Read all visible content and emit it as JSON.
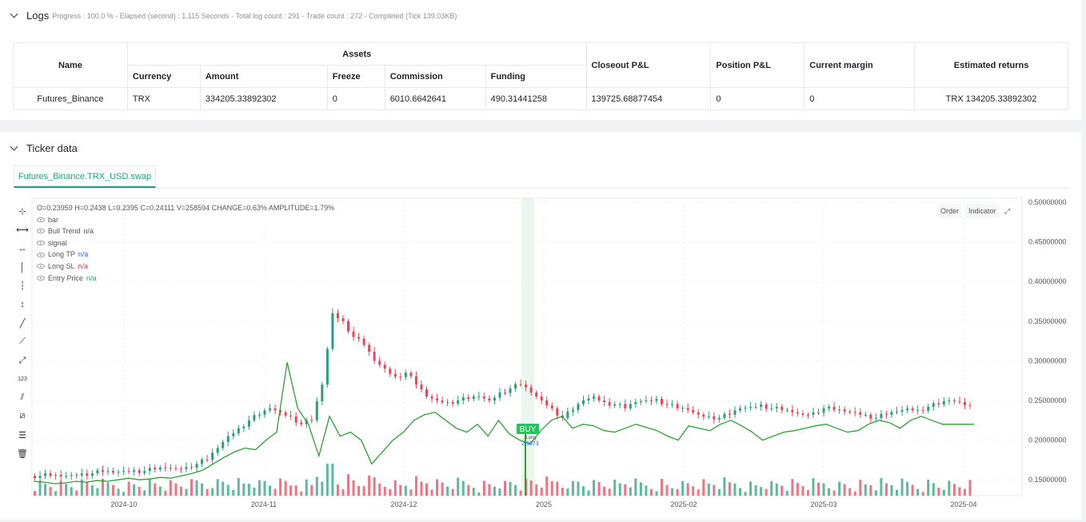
{
  "logs": {
    "title": "Logs",
    "summary": "Progress : 100.0 % - Elapsed (second) : 1.115  Seconds - Total log count : 291 - Trade count : 272 - Completed (Tick 139.03KB)",
    "table": {
      "headers": {
        "name": "Name",
        "assets": "Assets",
        "currency": "Currency",
        "amount": "Amount",
        "freeze": "Freeze",
        "commission": "Commission",
        "funding": "Funding",
        "closeout_pnl": "Closeout P&L",
        "position_pnl": "Position P&L",
        "current_margin": "Current margin",
        "estimated_returns": "Estimated returns"
      },
      "row": {
        "name": "Futures_Binance",
        "currency": "TRX",
        "amount": "334205.33892302",
        "freeze": "0",
        "commission": "6010.6642641",
        "funding": "490.31441258",
        "closeout_pnl": "139725.68877454",
        "position_pnl": "0",
        "current_margin": "0",
        "estimated_returns": "TRX 134205.33892302"
      }
    }
  },
  "ticker": {
    "title": "Ticker data",
    "tab_label": "Futures_Binance.TRX_USD.swap",
    "ohlc_line": "O=0.23959 H=0.2438 L=0.2395 C=0.24111 V=258594 CHANGE=0.63% AMPLITUDE=1.79%",
    "legend": [
      {
        "label": "bar",
        "value": ""
      },
      {
        "label": "Bull Trend",
        "value": "n/a"
      },
      {
        "label": "signal",
        "value": ""
      },
      {
        "label": "Long TP",
        "value": "n/a"
      },
      {
        "label": "Long SL",
        "value": "n/a"
      },
      {
        "label": "Entry Price",
        "value": "n/a"
      }
    ],
    "buttons": {
      "order": "Order",
      "indicator": "Indicator"
    },
    "icons": [
      "crosshair-icon",
      "horizontal-line-icon",
      "horizontal-ray-icon",
      "vertical-line-icon",
      "vertical-segment-icon",
      "vertical-ray-icon",
      "trend-line-icon",
      "ray-icon",
      "extended-line-icon",
      "price-label-icon",
      "parallel-channel-icon",
      "fib-icon",
      "measure-icon",
      "trash-icon"
    ],
    "colors": {
      "up": "#26a17b",
      "down": "#e8455a",
      "trend": "#2e9e3a",
      "accent": "#19a37a"
    }
  },
  "chart_data": {
    "type": "candlestick",
    "x_tick_labels": [
      "2024-10",
      "2024-11",
      "2024-12",
      "2025",
      "2025-02",
      "2025-03",
      "2025-04"
    ],
    "y_tick_labels": [
      "0.50000000",
      "0.45000000",
      "0.40000000",
      "0.35000000",
      "0.30000000",
      "0.25000000",
      "0.20000000",
      "0.15000000"
    ],
    "ylim": [
      0.13,
      0.505
    ],
    "signal": {
      "label": "BUY",
      "sublabel": "Long",
      "price_label": "2.5073",
      "date": "2024-12-27"
    },
    "close_series_approx": [
      0.155,
      0.155,
      0.154,
      0.156,
      0.158,
      0.158,
      0.16,
      0.159,
      0.161,
      0.162,
      0.161,
      0.163,
      0.165,
      0.164,
      0.166,
      0.17,
      0.175,
      0.19,
      0.205,
      0.215,
      0.225,
      0.232,
      0.24,
      0.235,
      0.23,
      0.22,
      0.225,
      0.27,
      0.36,
      0.35,
      0.33,
      0.32,
      0.3,
      0.29,
      0.28,
      0.285,
      0.27,
      0.255,
      0.25,
      0.248,
      0.25,
      0.252,
      0.255,
      0.25,
      0.26,
      0.265,
      0.27,
      0.26,
      0.25,
      0.24,
      0.228,
      0.238,
      0.25,
      0.255,
      0.248,
      0.245,
      0.24,
      0.248,
      0.25,
      0.252,
      0.245,
      0.24,
      0.238,
      0.232,
      0.23,
      0.228,
      0.232,
      0.24,
      0.242,
      0.245,
      0.24,
      0.238,
      0.235,
      0.232,
      0.235,
      0.24,
      0.238,
      0.236,
      0.235,
      0.232,
      0.228,
      0.232,
      0.236,
      0.24,
      0.238,
      0.242,
      0.245,
      0.25,
      0.248,
      0.243
    ],
    "trend_series_approx": [
      0.148,
      0.147,
      0.145,
      0.146,
      0.148,
      0.147,
      0.149,
      0.148,
      0.15,
      0.152,
      0.15,
      0.151,
      0.153,
      0.152,
      0.155,
      0.158,
      0.162,
      0.17,
      0.178,
      0.185,
      0.19,
      0.188,
      0.2,
      0.21,
      0.298,
      0.24,
      0.22,
      0.18,
      0.23,
      0.205,
      0.21,
      0.2,
      0.17,
      0.185,
      0.2,
      0.21,
      0.225,
      0.232,
      0.235,
      0.225,
      0.215,
      0.21,
      0.22,
      0.205,
      0.225,
      0.208,
      0.2,
      0.195,
      0.212,
      0.225,
      0.23,
      0.215,
      0.22,
      0.218,
      0.212,
      0.21,
      0.215,
      0.22,
      0.216,
      0.212,
      0.205,
      0.2,
      0.218,
      0.215,
      0.212,
      0.22,
      0.225,
      0.218,
      0.21,
      0.2,
      0.205,
      0.21,
      0.212,
      0.215,
      0.218,
      0.22,
      0.215,
      0.21,
      0.212,
      0.22,
      0.225,
      0.222,
      0.215,
      0.225,
      0.23,
      0.225,
      0.22,
      0.22,
      0.22,
      0.22
    ]
  }
}
